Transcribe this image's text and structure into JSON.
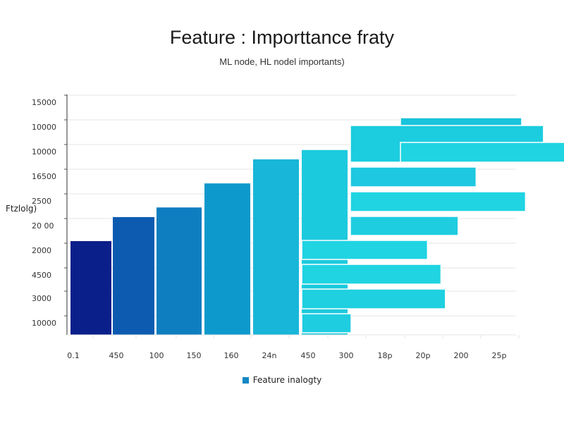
{
  "chart_data": {
    "type": "bar",
    "title": "Feature : Importtance fraty",
    "subtitle": "ML node, HL nodel importants)",
    "ylabel": "Ftzlolg)",
    "xlabel": "",
    "y_tick_labels": [
      "15000",
      "10000",
      "10000",
      "16500",
      "2500",
      "20 00",
      "2000",
      "4500",
      "3000",
      "10000"
    ],
    "x_tick_labels": [
      "0.1",
      "450",
      "100",
      "150",
      "160",
      "24n",
      "450",
      "300",
      "18p",
      "20p",
      "200",
      "25p"
    ],
    "legend": [
      "Feature inalogty"
    ],
    "grid": true,
    "vertical_bars": [
      {
        "color": "#0a1f8a",
        "value": 0.39
      },
      {
        "color": "#0c5bb1",
        "value": 0.49
      },
      {
        "color": "#0f7ec0",
        "value": 0.53
      },
      {
        "color": "#0e99cc",
        "value": 0.63
      },
      {
        "color": "#18b6d8",
        "value": 0.73
      }
    ],
    "horizontal_bars": [
      {
        "color": "#18c3dc",
        "value": 0.27
      },
      {
        "color": "#1cccdf",
        "value": 0.43
      },
      {
        "color": "#20d4e2",
        "value": 0.43
      },
      {
        "color": "#1ec8e0",
        "value": 0.28
      },
      {
        "color": "#20d4e2",
        "value": 0.39
      },
      {
        "color": "#1fcde0",
        "value": 0.24
      },
      {
        "color": "#20d4e2",
        "value": 0.28
      },
      {
        "color": "#20d4e2",
        "value": 0.31
      },
      {
        "color": "#1fd0e0",
        "value": 0.32
      },
      {
        "color": "#1fcde0",
        "value": 0.11
      },
      {
        "color": "#1fd0e0",
        "value": 0.24
      }
    ]
  },
  "colors": {
    "legend_swatch": "#1487c4",
    "grid": "#e6e6e6",
    "axis": "#555555"
  }
}
